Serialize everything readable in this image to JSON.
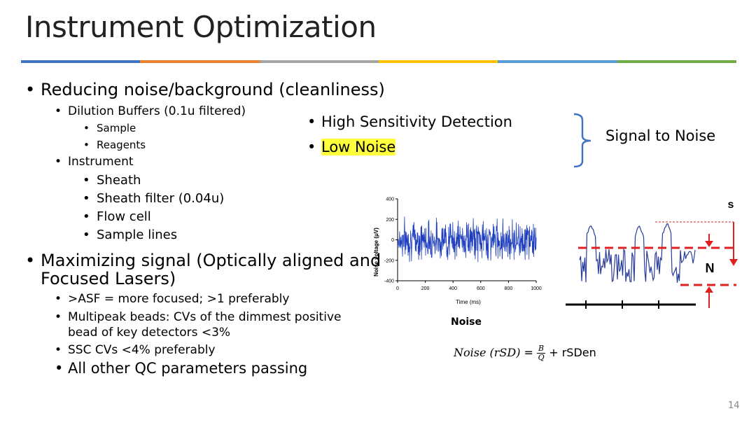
{
  "slide": {
    "title": "Instrument Optimization",
    "rule_colors": [
      "#4472c4",
      "#ed7d31",
      "#a5a5a5",
      "#ffc000",
      "#5b9bd5",
      "#70ad47"
    ],
    "page_number": "14"
  },
  "left": {
    "b1": "Reducing noise/background (cleanliness)",
    "b1_1": "Dilution Buffers (0.1u filtered)",
    "b1_1_1": "Sample",
    "b1_1_2": "Reagents",
    "b1_2": "Instrument",
    "b1_2_1": "Sheath",
    "b1_2_2": "Sheath filter (0.04u)",
    "b1_2_3": "Flow cell",
    "b1_2_4": "Sample lines",
    "b2_line1": "Maximizing signal (Optically aligned and",
    "b2_line2": "Focused Lasers)",
    "b2_1": ">ASF = more focused; >1 preferably",
    "b2_2_line1": "Multipeak beads: CVs of the dimmest positive",
    "b2_2_line2": "bead of key detectors <3%",
    "b2_3": "SSC CVs <4% preferably",
    "b2_4": "All other QC parameters passing"
  },
  "middle": {
    "item1": "High Sensitivity Detection",
    "item2": "Low Noise",
    "highlight_color": "#ffff3b",
    "brace_label": "Signal to Noise"
  },
  "noise_chart": {
    "caption": "Noise",
    "chart_data": {
      "type": "line",
      "xlabel": "Time (ms)",
      "ylabel": "Noise voltage (μV)",
      "xlim": [
        0,
        1000
      ],
      "ylim": [
        -400,
        400
      ],
      "x_ticks": [
        "0",
        "200",
        "400",
        "600",
        "800",
        "1000"
      ],
      "y_ticks": [
        "400",
        "200",
        "0",
        "-200",
        "-400"
      ],
      "series": [
        {
          "name": "noise",
          "color": "#1f3fbf",
          "approx_amplitude": 150
        }
      ]
    }
  },
  "sn_diagram": {
    "s_label": "s",
    "n_label": "N"
  },
  "formula": {
    "lhs": "Noise (rSD)",
    "equals": "=",
    "numerator": "B",
    "denominator": "Q",
    "tail": "+ rSDen"
  }
}
